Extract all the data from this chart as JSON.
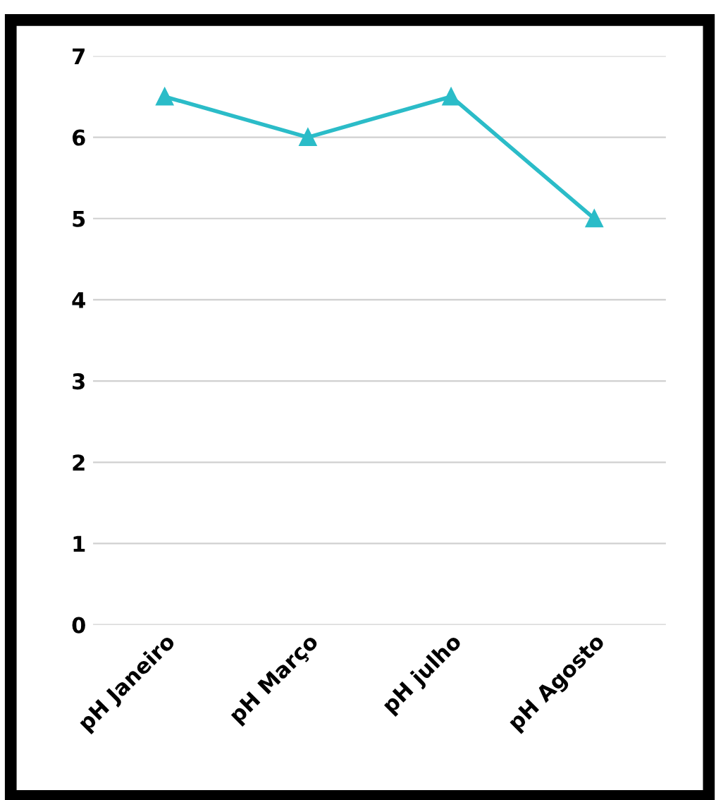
{
  "chart_data": {
    "type": "line",
    "categories": [
      "pH Janeiro",
      "pH Março",
      "pH julho",
      "pH Agosto"
    ],
    "series": [
      {
        "color": "#2bbcc8",
        "values": [
          6.5,
          6,
          6.5,
          5
        ]
      }
    ],
    "ylim": [
      0,
      7
    ],
    "yticks": [
      0,
      1,
      2,
      3,
      4,
      5,
      6,
      7
    ],
    "grid": "y",
    "marker": "triangle",
    "line_style": "solid"
  }
}
